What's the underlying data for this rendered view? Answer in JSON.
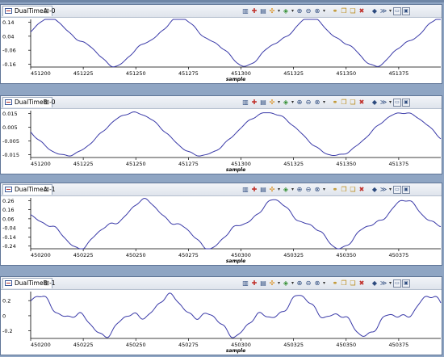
{
  "panels": [
    {
      "tab_label": "DualTimeA -0",
      "x_label": "sample",
      "chart_data": {
        "type": "line",
        "x_ticks": [
          451200,
          451225,
          451250,
          451275,
          451300,
          451325,
          451350,
          451375
        ],
        "x_range": [
          451200,
          451395
        ],
        "y_ticks": [
          0.14,
          0.04,
          -0.06,
          -0.16
        ],
        "y_range": [
          -0.18,
          0.16
        ],
        "waveform": {
          "amplitude": 0.15,
          "period": 62,
          "phase_x": 451209,
          "harmonic": 0.025,
          "noise": 0.004
        }
      }
    },
    {
      "tab_label": "DualTimeB -0",
      "x_label": "sample",
      "chart_data": {
        "type": "line",
        "x_ticks": [
          451200,
          451225,
          451250,
          451275,
          451300,
          451325,
          451350,
          451375
        ],
        "x_range": [
          451200,
          451395
        ],
        "y_ticks": [
          0.015,
          0.005,
          -0.005,
          -0.015
        ],
        "y_range": [
          -0.017,
          0.017
        ],
        "waveform": {
          "amplitude": 0.0155,
          "period": 64,
          "phase_x": 451249,
          "harmonic": 0.0,
          "noise": 0.0004
        }
      }
    },
    {
      "tab_label": "DualTimeA -1",
      "x_label": "sample",
      "chart_data": {
        "type": "line",
        "x_ticks": [
          450200,
          450225,
          450250,
          450275,
          450300,
          450325,
          450350,
          450375
        ],
        "x_range": [
          450200,
          450395
        ],
        "y_ticks": [
          0.26,
          0.16,
          0.06,
          -0.04,
          -0.14,
          -0.24
        ],
        "y_range": [
          -0.27,
          0.29
        ],
        "waveform": {
          "amplitude": 0.22,
          "period": 62,
          "phase_x": 450254,
          "harmonic": 0.05,
          "noise": 0.01
        }
      }
    },
    {
      "tab_label": "DualTimeB -1",
      "x_label": "sample",
      "chart_data": {
        "type": "line",
        "x_ticks": [
          450200,
          450225,
          450250,
          450275,
          450300,
          450325,
          450350,
          450375
        ],
        "x_range": [
          450200,
          450395
        ],
        "y_ticks": [
          0.2,
          0,
          -0.2
        ],
        "y_range": [
          -0.3,
          0.32
        ],
        "waveform": {
          "amplitude": 0.18,
          "period": 62,
          "phase_x": 450266,
          "harmonic": 0.09,
          "noise": 0.02
        }
      }
    }
  ],
  "toolbar_icons": [
    "chart-icon",
    "properties-icon",
    "table-icon",
    "cursor-icon",
    "dropdown",
    "reset-icon",
    "dropdown",
    "zoom-in-icon",
    "zoom-out-icon",
    "zoom-fit-icon",
    "dropdown",
    "separator",
    "link-icon",
    "copy-icon",
    "copy-all-icon",
    "delete-icon",
    "separator",
    "pin-icon",
    "more-icon",
    "dropdown",
    "minimize-icon",
    "maximize-icon"
  ],
  "colors": {
    "line": "#3a3aa8",
    "frame": "#5f7596",
    "background": "#8fa5c3"
  }
}
